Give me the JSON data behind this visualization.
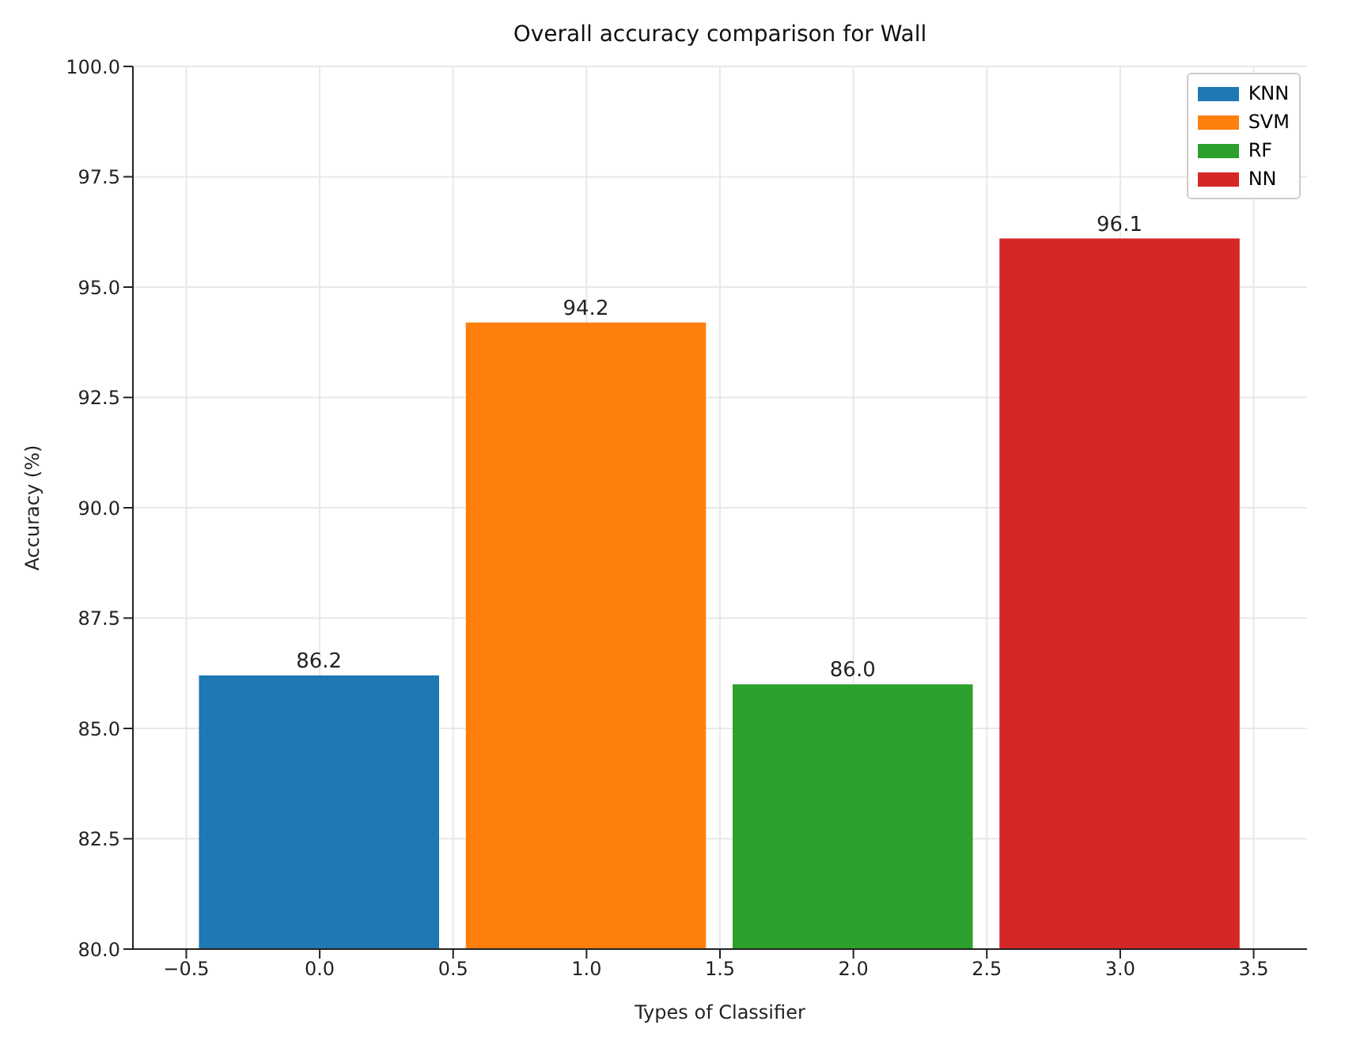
{
  "chart_data": {
    "type": "bar",
    "title": "Overall accuracy comparison for Wall",
    "xlabel": "Types of Classifier",
    "ylabel": "Accuracy (%)",
    "series": [
      {
        "name": "KNN",
        "color": "#1f77b4",
        "x": [
          0
        ],
        "values": [
          86.2
        ],
        "value_labels": [
          "86.2"
        ]
      },
      {
        "name": "SVM",
        "color": "#ff7f0e",
        "x": [
          1
        ],
        "values": [
          94.2
        ],
        "value_labels": [
          "94.2"
        ]
      },
      {
        "name": "RF",
        "color": "#2ca02c",
        "x": [
          2
        ],
        "values": [
          86.0
        ],
        "value_labels": [
          "86.0"
        ]
      },
      {
        "name": "NN",
        "color": "#d62728",
        "x": [
          3
        ],
        "values": [
          96.1
        ],
        "value_labels": [
          "96.1"
        ]
      }
    ],
    "xlim": [
      -0.7,
      3.7
    ],
    "xticks": [
      {
        "value": -0.5,
        "label": "−0.5"
      },
      {
        "value": 0,
        "label": "0.0"
      },
      {
        "value": 0.5,
        "label": "0.5"
      },
      {
        "value": 1,
        "label": "1.0"
      },
      {
        "value": 1.5,
        "label": "1.5"
      },
      {
        "value": 2,
        "label": "2.0"
      },
      {
        "value": 2.5,
        "label": "2.5"
      },
      {
        "value": 3,
        "label": "3.0"
      },
      {
        "value": 3.5,
        "label": "3.5"
      }
    ],
    "ylim": [
      80,
      100
    ],
    "yticks": [
      {
        "value": 80,
        "label": "80.0"
      },
      {
        "value": 82.5,
        "label": "82.5"
      },
      {
        "value": 85,
        "label": "85.0"
      },
      {
        "value": 87.5,
        "label": "87.5"
      },
      {
        "value": 90,
        "label": "90.0"
      },
      {
        "value": 92.5,
        "label": "92.5"
      },
      {
        "value": 95,
        "label": "95.0"
      },
      {
        "value": 97.5,
        "label": "97.5"
      },
      {
        "value": 100,
        "label": "100.0"
      }
    ],
    "grid": true,
    "legend": "top right"
  }
}
